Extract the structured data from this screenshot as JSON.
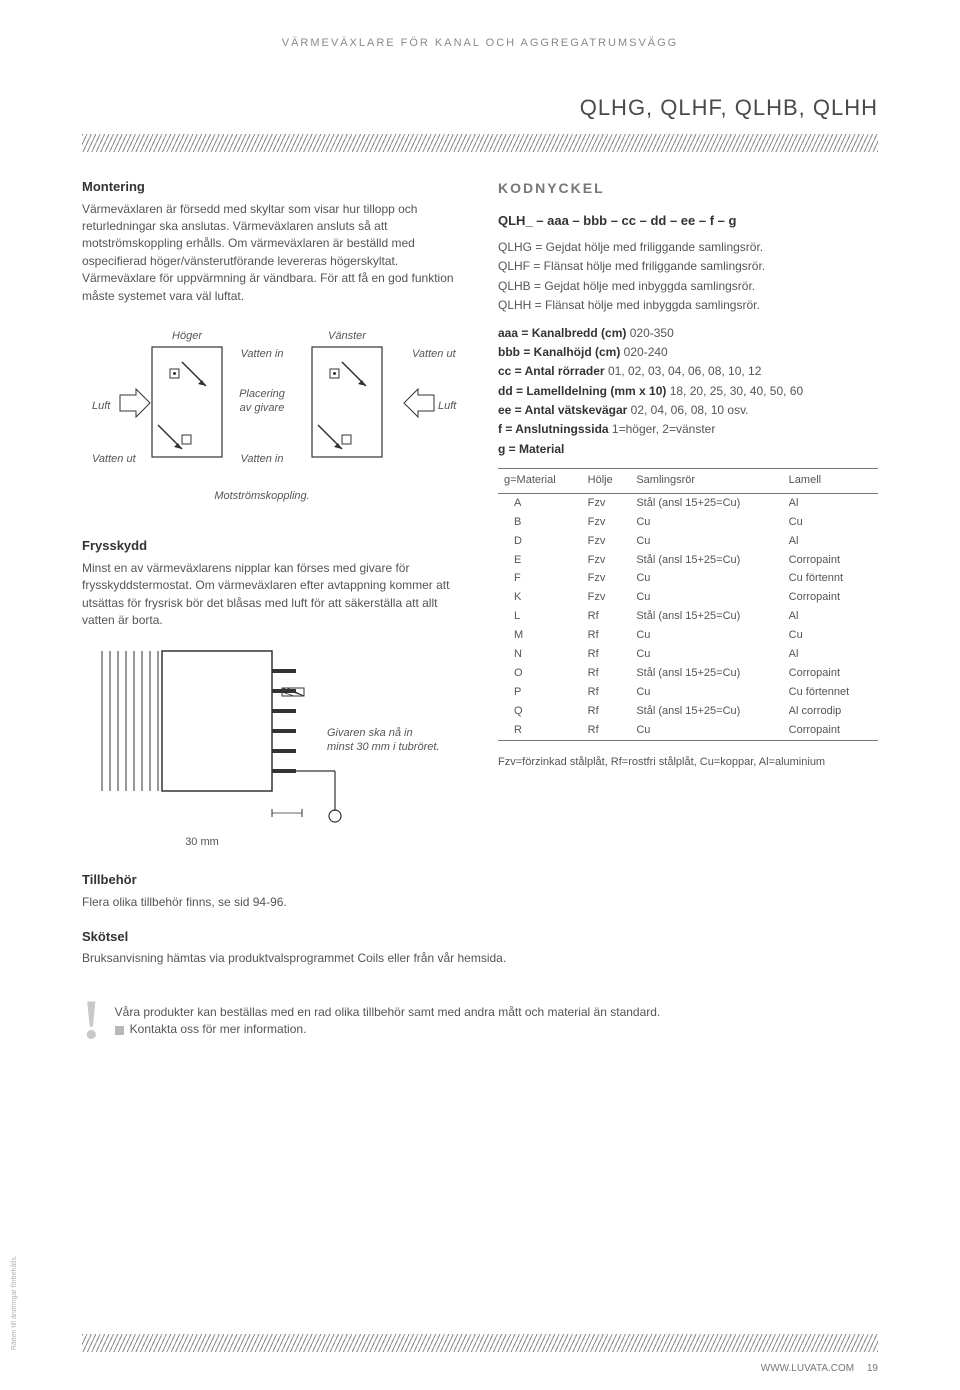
{
  "header_text": "VÄRMEVÄXLARE FÖR KANAL OCH AGGREGATRUMSVÄGG",
  "page_title": "QLHG, QLHF, QLHB, QLHH",
  "mounting": {
    "title": "Montering",
    "body": "Värmeväxlaren är försedd med skyltar som visar hur tillopp och returledningar ska anslutas. Värmeväxlaren ansluts så att motströmskoppling erhålls. Om värmeväxlaren är beställd med ospecifierad höger/vänsterutförande levereras högerskyltat. Värmeväxlare för uppvärmning är vändbara. För att få en god funktion måste systemet vara väl luftat."
  },
  "diagram1": {
    "hoger": "Höger",
    "vanster": "Vänster",
    "luft": "Luft",
    "vatten_in": "Vatten in",
    "vatten_ut": "Vatten ut",
    "placering": "Placering\nav givare",
    "caption": "Motströmskoppling."
  },
  "frost": {
    "title": "Frysskydd",
    "body": "Minst en av värmeväxlarens nipplar kan förses med givare för frysskyddstermostat. Om värmeväxlaren efter avtappning kommer att utsättas för frysrisk bör det blåsas med luft för att säkerställa att allt vatten är borta."
  },
  "diagram2": {
    "note": "Givaren ska nå in\nminst 30 mm i tubröret.",
    "dim": "30 mm"
  },
  "kodnyckel": {
    "title": "KODNYCKEL",
    "formula": "QLH_ – aaa – bbb – cc – dd – ee – f – g",
    "qlhg": "QLHG = Gejdat hölje med friliggande samlingsrör.",
    "qlhf": "QLHF = Flänsat hölje med friliggande samlingsrör.",
    "qlhb": "QLHB = Gejdat hölje med inbyggda samlingsrör.",
    "qlhh": "QLHH = Flänsat hölje med inbyggda samlingsrör.",
    "aaa_label": "aaa = Kanalbredd (cm)",
    "aaa_val": " 020-350",
    "bbb_label": "bbb = Kanalhöjd (cm)",
    "bbb_val": " 020-240",
    "cc_label": "cc = Antal rörrader",
    "cc_val": "  01, 02, 03, 04, 06, 08, 10, 12",
    "dd_label": "dd = Lamelldelning (mm x 10)",
    "dd_val": "  18, 20, 25, 30, 40, 50, 60",
    "ee_label": "ee = Antal vätskevägar",
    "ee_val": " 02, 04, 06, 08, 10 osv.",
    "f_label": "f = Anslutningssida",
    "f_val": "  1=höger, 2=vänster",
    "g_label": "g = Material"
  },
  "material_table": {
    "headers": [
      "g=Material",
      "Hölje",
      "Samlingsrör",
      "Lamell"
    ],
    "rows": [
      [
        "A",
        "Fzv",
        "Stål (ansl 15+25=Cu)",
        "Al"
      ],
      [
        "B",
        "Fzv",
        "Cu",
        "Cu"
      ],
      [
        "D",
        "Fzv",
        "Cu",
        "Al"
      ],
      [
        "E",
        "Fzv",
        "Stål (ansl 15+25=Cu)",
        "Corropaint"
      ],
      [
        "F",
        "Fzv",
        "Cu",
        "Cu förtennt"
      ],
      [
        "K",
        "Fzv",
        "Cu",
        "Corropaint"
      ],
      [
        "L",
        "Rf",
        "Stål (ansl 15+25=Cu)",
        "Al"
      ],
      [
        "M",
        "Rf",
        "Cu",
        "Cu"
      ],
      [
        "N",
        "Rf",
        "Cu",
        "Al"
      ],
      [
        "O",
        "Rf",
        "Stål (ansl 15+25=Cu)",
        "Corropaint"
      ],
      [
        "P",
        "Rf",
        "Cu",
        "Cu förtennet"
      ],
      [
        "Q",
        "Rf",
        "Stål (ansl 15+25=Cu)",
        "Al corrodip"
      ],
      [
        "R",
        "Rf",
        "Cu",
        "Corropaint"
      ]
    ],
    "caption": "Fzv=förzinkad stålplåt, Rf=rostfri stålplåt, Cu=koppar, Al=aluminium"
  },
  "tillbehor": {
    "title": "Tillbehör",
    "body": "Flera olika tillbehör finns, se sid 94-96."
  },
  "skotsel": {
    "title": "Skötsel",
    "body": "Bruksanvisning hämtas via produktvalsprogrammet Coils eller från vår hemsida."
  },
  "excl": {
    "line1": "Våra produkter kan beställas med en rad olika tillbehör samt med andra mått och material än standard.",
    "line2": "Kontakta oss för mer information."
  },
  "footer": {
    "url": "WWW.LUVATA.COM",
    "page": "19",
    "side": "Rätten till ändringar förbehålls."
  }
}
